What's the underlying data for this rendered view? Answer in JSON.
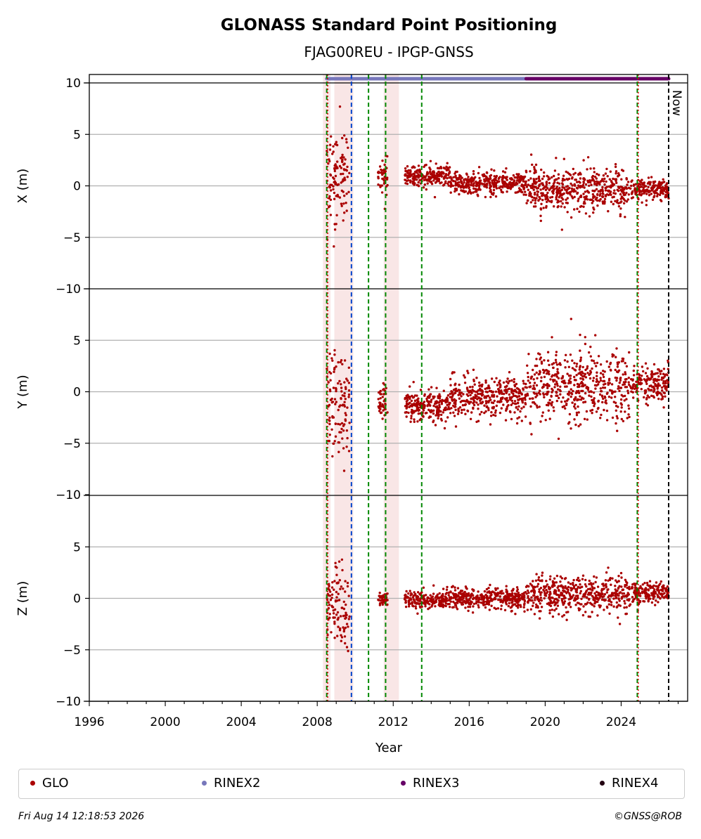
{
  "chart_data": {
    "type": "scatter",
    "title": "GLONASS Standard Point Positioning",
    "subtitle": "FJAG00REU - IPGP-GNSS",
    "xlabel": "Year",
    "xlim": [
      1996,
      2027.5
    ],
    "x_ticks": [
      "1996",
      "2000",
      "2004",
      "2008",
      "2012",
      "2016",
      "2020",
      "2024"
    ],
    "now_label": "Now",
    "grid": true,
    "panels": [
      {
        "ylabel": "X (m)",
        "ylim": [
          -10,
          10
        ],
        "y_ticks": [
          "10",
          "5",
          "0",
          "−5",
          "−10"
        ],
        "segments": [
          {
            "x0": 2008.5,
            "x1": 2009.7,
            "center": 1.0,
            "spread": 4.5
          },
          {
            "x0": 2011.2,
            "x1": 2011.7,
            "center": 1.0,
            "spread": 1.6
          },
          {
            "x0": 2012.6,
            "x1": 2015.0,
            "center": 1.0,
            "spread": 1.0
          },
          {
            "x0": 2015.0,
            "x1": 2019.0,
            "center": 0.3,
            "spread": 1.1
          },
          {
            "x0": 2019.0,
            "x1": 2024.5,
            "center": -0.4,
            "spread": 2.0
          },
          {
            "x0": 2024.5,
            "x1": 2026.5,
            "center": -0.3,
            "spread": 1.0
          }
        ]
      },
      {
        "ylabel": "Y (m)",
        "ylim": [
          -10,
          10
        ],
        "y_ticks": [
          "5",
          "0",
          "−5",
          "−10"
        ],
        "segments": [
          {
            "x0": 2008.5,
            "x1": 2009.7,
            "center": -1.0,
            "spread": 5.0
          },
          {
            "x0": 2011.2,
            "x1": 2011.7,
            "center": -1.0,
            "spread": 1.6
          },
          {
            "x0": 2012.6,
            "x1": 2015.0,
            "center": -1.3,
            "spread": 1.4
          },
          {
            "x0": 2015.0,
            "x1": 2019.0,
            "center": -0.5,
            "spread": 2.0
          },
          {
            "x0": 2019.0,
            "x1": 2024.5,
            "center": 0.5,
            "spread": 3.5
          },
          {
            "x0": 2024.5,
            "x1": 2026.5,
            "center": 0.8,
            "spread": 1.6
          }
        ]
      },
      {
        "ylabel": "Z (m)",
        "ylim": [
          -10,
          10
        ],
        "y_ticks": [
          "5",
          "0",
          "−5",
          "−10"
        ],
        "segments": [
          {
            "x0": 2008.5,
            "x1": 2009.7,
            "center": -0.8,
            "spread": 4.0
          },
          {
            "x0": 2011.2,
            "x1": 2011.7,
            "center": 0.0,
            "spread": 0.8
          },
          {
            "x0": 2012.6,
            "x1": 2015.0,
            "center": -0.2,
            "spread": 0.8
          },
          {
            "x0": 2015.0,
            "x1": 2019.0,
            "center": 0.0,
            "spread": 1.0
          },
          {
            "x0": 2019.0,
            "x1": 2024.5,
            "center": 0.3,
            "spread": 1.8
          },
          {
            "x0": 2024.5,
            "x1": 2026.5,
            "center": 0.5,
            "spread": 1.0
          }
        ]
      }
    ],
    "markers": {
      "green_dashed": [
        2008.5,
        2010.7,
        2011.6,
        2013.5,
        2024.85
      ],
      "red_dotted": [
        2008.55,
        2024.9
      ],
      "blue_dashed": [
        2009.8
      ],
      "now": 2026.5
    },
    "shaded": [
      [
        2008.3,
        2008.7
      ],
      [
        2008.9,
        2009.9
      ],
      [
        2011.5,
        2012.3
      ]
    ],
    "rinex_bars": [
      {
        "name": "RINEX2",
        "x0": 2008.5,
        "x1": 2019.0
      },
      {
        "name": "RINEX3",
        "x0": 2019.0,
        "x1": 2026.5
      }
    ],
    "colors": {
      "glo": "#aa0000",
      "rinex2": "#7777bb",
      "rinex3": "#660066",
      "rinex4": "#220011",
      "green": "#008800",
      "blue": "#0044cc",
      "grid": "#b0b0b0",
      "shade": "#f8e0e0"
    }
  },
  "legend": {
    "items": [
      {
        "label": "GLO",
        "color": "#aa0000"
      },
      {
        "label": "RINEX2",
        "color": "#7777bb"
      },
      {
        "label": "RINEX3",
        "color": "#660066"
      },
      {
        "label": "RINEX4",
        "color": "#220011"
      }
    ]
  },
  "footer": {
    "timestamp": "Fri Aug 14 12:18:53 2026",
    "copyright": "©GNSS@ROB"
  }
}
